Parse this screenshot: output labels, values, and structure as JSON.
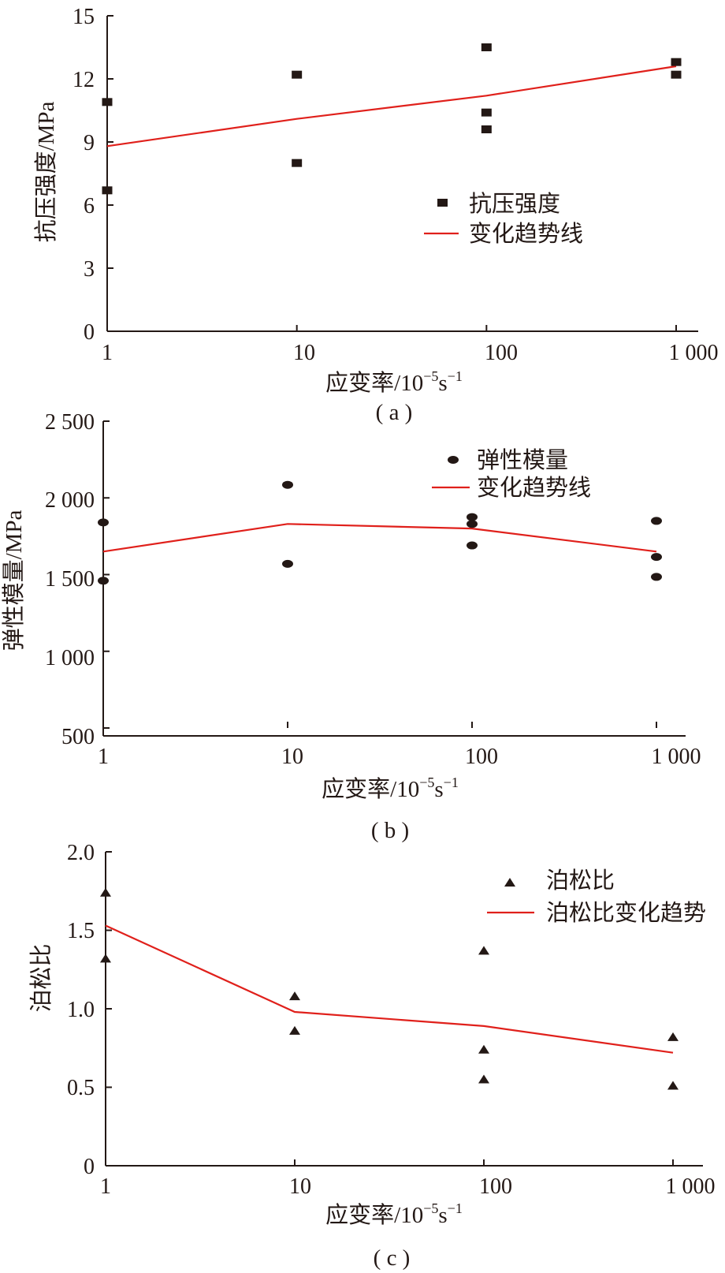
{
  "charts": [
    {
      "id": "a",
      "type": "scatter",
      "x_scale": "log",
      "xlim": [
        1,
        1000
      ],
      "ylim": [
        0,
        15
      ],
      "x_ticks": [
        1,
        10,
        100,
        1000
      ],
      "x_tick_labels": [
        "1",
        "10",
        "100",
        "1 000"
      ],
      "y_ticks": [
        0,
        3,
        6,
        9,
        12,
        15
      ],
      "y_tick_labels": [
        "0",
        "3",
        "6",
        "9",
        "12",
        "15"
      ],
      "xlabel_main": "应变率/10",
      "xlabel_exp": "−5",
      "xlabel_unit": "s",
      "xlabel_unit_exp": "−1",
      "ylabel": "抗压强度/MPa",
      "panel_label": "( a )",
      "marker": "square",
      "legend_position": "center-right",
      "series": [
        {
          "name": "抗压强度",
          "kind": "points",
          "points": [
            [
              1,
              10.9
            ],
            [
              1,
              6.7
            ],
            [
              10,
              12.2
            ],
            [
              10,
              8.0
            ],
            [
              100,
              13.5
            ],
            [
              100,
              10.4
            ],
            [
              100,
              9.6
            ],
            [
              1000,
              12.8
            ],
            [
              1000,
              12.2
            ]
          ]
        },
        {
          "name": "变化趋势线",
          "kind": "line",
          "points": [
            [
              1,
              8.8
            ],
            [
              10,
              10.1
            ],
            [
              100,
              11.2
            ],
            [
              1000,
              12.6
            ]
          ]
        }
      ]
    },
    {
      "id": "b",
      "type": "scatter",
      "x_scale": "log",
      "xlim": [
        1,
        1000
      ],
      "ylim": [
        500,
        2500
      ],
      "x_ticks": [
        1,
        10,
        100,
        1000
      ],
      "x_tick_labels": [
        "1",
        "10",
        "100",
        "1 000"
      ],
      "y_ticks": [
        500,
        1000,
        1500,
        2000,
        2500
      ],
      "y_tick_labels": [
        "500",
        "1 000",
        "1 500",
        "2 000",
        "2 500"
      ],
      "xlabel_main": "应变率/10",
      "xlabel_exp": "−5",
      "xlabel_unit": "s",
      "xlabel_unit_exp": "−1",
      "ylabel": "弹性模量/MPa",
      "panel_label": "( b )",
      "marker": "ellipse",
      "legend_position": "top-center",
      "series": [
        {
          "name": "弹性模量",
          "kind": "points",
          "points": [
            [
              1,
              1840
            ],
            [
              1,
              1460
            ],
            [
              10,
              2085
            ],
            [
              10,
              1570
            ],
            [
              100,
              1875
            ],
            [
              100,
              1830
            ],
            [
              100,
              1690
            ],
            [
              1000,
              1850
            ],
            [
              1000,
              1615
            ],
            [
              1000,
              1485
            ]
          ]
        },
        {
          "name": "变化趋势线",
          "kind": "line",
          "points": [
            [
              1,
              1650
            ],
            [
              10,
              1830
            ],
            [
              100,
              1800
            ],
            [
              1000,
              1650
            ]
          ]
        }
      ]
    },
    {
      "id": "c",
      "type": "scatter",
      "x_scale": "log",
      "xlim": [
        1,
        1000
      ],
      "ylim": [
        0,
        2.0
      ],
      "x_ticks": [
        1,
        10,
        100,
        1000
      ],
      "x_tick_labels": [
        "1",
        "10",
        "100",
        "1 000"
      ],
      "y_ticks": [
        0,
        0.5,
        1.0,
        1.5,
        2.0
      ],
      "y_tick_labels": [
        "0",
        "0.5",
        "1.0",
        "1.5",
        "2.0"
      ],
      "xlabel_main": "应变率/10",
      "xlabel_exp": "−5",
      "xlabel_unit": "s",
      "xlabel_unit_exp": "−1",
      "ylabel": "泊松比",
      "panel_label": "( c )",
      "marker": "triangle",
      "legend_position": "top-right",
      "series": [
        {
          "name": "泊松比",
          "kind": "points",
          "points": [
            [
              1,
              1.74
            ],
            [
              1,
              1.32
            ],
            [
              10,
              1.08
            ],
            [
              10,
              0.86
            ],
            [
              100,
              1.37
            ],
            [
              100,
              0.74
            ],
            [
              100,
              0.55
            ],
            [
              1000,
              0.82
            ],
            [
              1000,
              0.51
            ]
          ]
        },
        {
          "name": "泊松比变化趋势",
          "kind": "line",
          "points": [
            [
              1,
              1.53
            ],
            [
              10,
              0.98
            ],
            [
              100,
              0.89
            ],
            [
              1000,
              0.72
            ]
          ]
        }
      ]
    }
  ],
  "colors": {
    "marker": "#231815",
    "trend": "#e0201b",
    "axis": "#231815"
  }
}
